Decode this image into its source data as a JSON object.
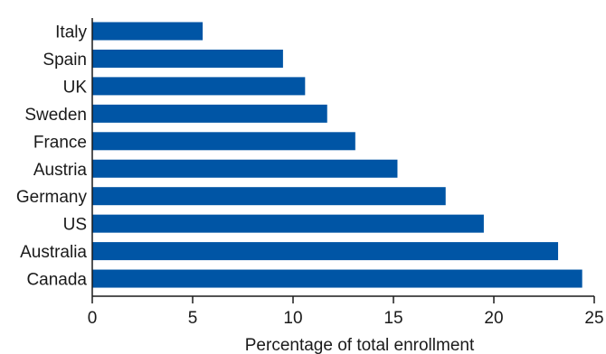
{
  "chart_data": {
    "type": "bar",
    "orientation": "horizontal",
    "title": "",
    "xlabel": "Percentage of total enrollment",
    "ylabel": "",
    "categories": [
      "Italy",
      "Spain",
      "UK",
      "Sweden",
      "France",
      "Austria",
      "Germany",
      "US",
      "Australia",
      "Canada"
    ],
    "values": [
      5.5,
      9.5,
      10.6,
      11.7,
      13.1,
      15.2,
      17.6,
      19.5,
      23.2,
      24.4
    ],
    "xlim": [
      0,
      25
    ],
    "xticks": [
      "0",
      "5",
      "10",
      "15",
      "20",
      "25"
    ],
    "grid": false,
    "legend": "none",
    "bar_color": "#0055a5",
    "axis_color": "#1a1a1a"
  }
}
